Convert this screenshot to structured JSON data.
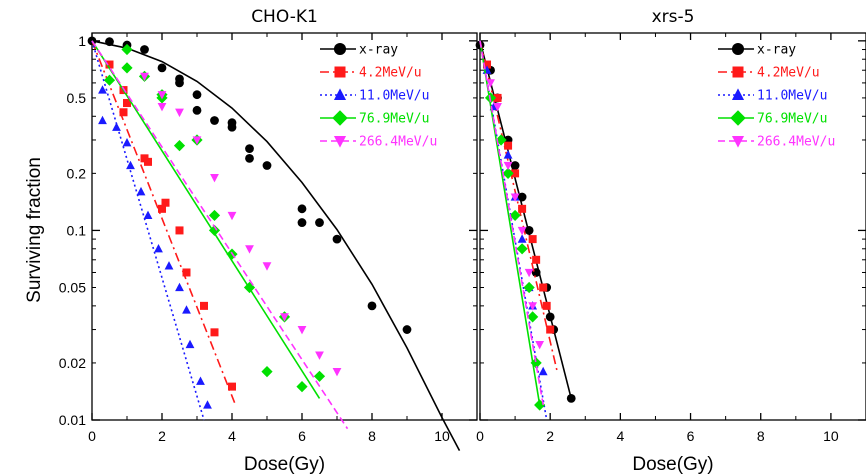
{
  "figure": {
    "ylabel": "Surviving  fraction"
  },
  "chart_data": [
    {
      "type": "scatter",
      "title": "CHO-K1",
      "xlabel": "Dose(Gy)",
      "ylabel": "Surviving  fraction",
      "xlim": [
        0,
        11
      ],
      "ylim": [
        0.01,
        1.1
      ],
      "yscale": "log",
      "x_ticks": [
        "0",
        "2",
        "4",
        "6",
        "8",
        "10"
      ],
      "y_ticks": [
        "1",
        "0.5",
        "0.2",
        "0.1",
        "0.05",
        "0.02",
        "0.01"
      ],
      "legend_position": "top-right",
      "series": [
        {
          "name": "x-ray",
          "color": "#000000",
          "marker": "circle",
          "line": "solid",
          "points": [
            [
              0,
              1.0
            ],
            [
              0.5,
              0.99
            ],
            [
              1,
              0.95
            ],
            [
              1.5,
              0.9
            ],
            [
              2,
              0.72
            ],
            [
              2.5,
              0.63
            ],
            [
              2.5,
              0.6
            ],
            [
              3,
              0.52
            ],
            [
              3,
              0.43
            ],
            [
              3.5,
              0.38
            ],
            [
              4,
              0.35
            ],
            [
              4,
              0.37
            ],
            [
              4.5,
              0.24
            ],
            [
              4.5,
              0.27
            ],
            [
              5,
              0.22
            ],
            [
              6,
              0.13
            ],
            [
              6,
              0.11
            ],
            [
              6.5,
              0.11
            ],
            [
              7,
              0.09
            ],
            [
              8,
              0.04
            ],
            [
              9,
              0.03
            ]
          ],
          "fit": [
            [
              0,
              1.0
            ],
            [
              1,
              0.915
            ],
            [
              2,
              0.777
            ],
            [
              3,
              0.611
            ],
            [
              4,
              0.442
            ],
            [
              5,
              0.294
            ],
            [
              6,
              0.179
            ],
            [
              7,
              0.101
            ],
            [
              8,
              0.052
            ],
            [
              9,
              0.024
            ],
            [
              10,
              0.0103
            ],
            [
              10.5,
              0.0069
            ]
          ]
        },
        {
          "name": "4.2MeV/u",
          "color": "#ff1a1a",
          "marker": "square",
          "line": "dashdot",
          "points": [
            [
              0.5,
              0.75
            ],
            [
              0.9,
              0.55
            ],
            [
              0.9,
              0.42
            ],
            [
              1,
              0.47
            ],
            [
              1.5,
              0.24
            ],
            [
              1.6,
              0.23
            ],
            [
              2,
              0.13
            ],
            [
              2.1,
              0.14
            ],
            [
              2.5,
              0.1
            ],
            [
              2.7,
              0.06
            ],
            [
              3.2,
              0.04
            ],
            [
              3.5,
              0.029
            ],
            [
              4,
              0.015
            ]
          ],
          "fit": [
            [
              0,
              1.0
            ],
            [
              4.1,
              0.012
            ]
          ]
        },
        {
          "name": "11.0MeV/u",
          "color": "#1a1aff",
          "marker": "triangle-up",
          "line": "dotted",
          "points": [
            [
              0.3,
              0.55
            ],
            [
              0.3,
              0.38
            ],
            [
              0.7,
              0.35
            ],
            [
              1,
              0.29
            ],
            [
              1.1,
              0.22
            ],
            [
              1.4,
              0.16
            ],
            [
              1.6,
              0.12
            ],
            [
              1.9,
              0.08
            ],
            [
              2.2,
              0.065
            ],
            [
              2.5,
              0.05
            ],
            [
              2.7,
              0.038
            ],
            [
              2.8,
              0.025
            ],
            [
              3.1,
              0.016
            ],
            [
              3.3,
              0.012
            ]
          ],
          "fit": [
            [
              0,
              1.0
            ],
            [
              3.2,
              0.01
            ]
          ]
        },
        {
          "name": "76.9MeV/u",
          "color": "#00e000",
          "marker": "diamond",
          "line": "solid",
          "points": [
            [
              0.5,
              0.62
            ],
            [
              1,
              0.9
            ],
            [
              1,
              0.72
            ],
            [
              1.5,
              0.65
            ],
            [
              2,
              0.52
            ],
            [
              2,
              0.5
            ],
            [
              2.5,
              0.28
            ],
            [
              3,
              0.3
            ],
            [
              3.5,
              0.12
            ],
            [
              3.5,
              0.1
            ],
            [
              4,
              0.075
            ],
            [
              4.5,
              0.05
            ],
            [
              5,
              0.018
            ],
            [
              5.5,
              0.035
            ],
            [
              6,
              0.015
            ],
            [
              6.5,
              0.017
            ]
          ],
          "fit": [
            [
              0,
              1.0
            ],
            [
              6.5,
              0.013
            ]
          ]
        },
        {
          "name": "266.4MeV/u",
          "color": "#ff33ff",
          "marker": "triangle-down",
          "line": "dashed",
          "points": [
            [
              1.5,
              0.65
            ],
            [
              2,
              0.52
            ],
            [
              2,
              0.45
            ],
            [
              2.5,
              0.42
            ],
            [
              3,
              0.3
            ],
            [
              3.5,
              0.19
            ],
            [
              4,
              0.12
            ],
            [
              4.5,
              0.08
            ],
            [
              5,
              0.065
            ],
            [
              5.5,
              0.035
            ],
            [
              6,
              0.03
            ],
            [
              6.5,
              0.022
            ],
            [
              7,
              0.018
            ]
          ],
          "fit": [
            [
              0,
              1.0
            ],
            [
              7.3,
              0.009
            ]
          ]
        }
      ]
    },
    {
      "type": "scatter",
      "title": "xrs-5",
      "xlabel": "Dose(Gy)",
      "xlim": [
        0,
        11
      ],
      "ylim": [
        0.01,
        1.1
      ],
      "yscale": "log",
      "x_ticks": [
        "0",
        "2",
        "4",
        "6",
        "8",
        "10"
      ],
      "legend_position": "top-right",
      "series": [
        {
          "name": "x-ray",
          "color": "#000000",
          "marker": "circle",
          "line": "solid",
          "points": [
            [
              0,
              0.95
            ],
            [
              0.3,
              0.7
            ],
            [
              0.5,
              0.5
            ],
            [
              0.8,
              0.3
            ],
            [
              1,
              0.22
            ],
            [
              1.2,
              0.15
            ],
            [
              1.4,
              0.1
            ],
            [
              1.6,
              0.06
            ],
            [
              1.9,
              0.05
            ],
            [
              2,
              0.035
            ],
            [
              2.1,
              0.03
            ],
            [
              2.6,
              0.013
            ]
          ],
          "fit": [
            [
              0,
              1.0
            ],
            [
              2.6,
              0.013
            ]
          ]
        },
        {
          "name": "4.2MeV/u",
          "color": "#ff1a1a",
          "marker": "square",
          "line": "dashdot",
          "points": [
            [
              0.2,
              0.75
            ],
            [
              0.5,
              0.5
            ],
            [
              0.8,
              0.28
            ],
            [
              1,
              0.2
            ],
            [
              1.2,
              0.13
            ],
            [
              1.5,
              0.09
            ],
            [
              1.6,
              0.07
            ],
            [
              1.8,
              0.05
            ],
            [
              1.9,
              0.04
            ],
            [
              2,
              0.03
            ]
          ],
          "fit": [
            [
              0,
              1.0
            ],
            [
              2.2,
              0.018
            ]
          ]
        },
        {
          "name": "11.0MeV/u",
          "color": "#1a1aff",
          "marker": "triangle-up",
          "line": "dotted",
          "points": [
            [
              0.2,
              0.7
            ],
            [
              0.4,
              0.45
            ],
            [
              0.8,
              0.25
            ],
            [
              1,
              0.15
            ],
            [
              1.2,
              0.09
            ],
            [
              1.4,
              0.05
            ],
            [
              1.5,
              0.04
            ],
            [
              1.8,
              0.018
            ]
          ],
          "fit": [
            [
              0,
              1.0
            ],
            [
              1.9,
              0.01
            ]
          ]
        },
        {
          "name": "76.9MeV/u",
          "color": "#00e000",
          "marker": "diamond",
          "line": "solid",
          "points": [
            [
              0.3,
              0.5
            ],
            [
              0.6,
              0.3
            ],
            [
              0.8,
              0.2
            ],
            [
              1,
              0.12
            ],
            [
              1.2,
              0.08
            ],
            [
              1.4,
              0.05
            ],
            [
              1.5,
              0.035
            ],
            [
              1.6,
              0.02
            ],
            [
              1.7,
              0.012
            ]
          ],
          "fit": [
            [
              0,
              1.0
            ],
            [
              1.7,
              0.012
            ]
          ]
        },
        {
          "name": "266.4MeV/u",
          "color": "#ff33ff",
          "marker": "triangle-down",
          "line": "dashed",
          "points": [
            [
              0.3,
              0.6
            ],
            [
              0.5,
              0.45
            ],
            [
              0.8,
              0.22
            ],
            [
              1,
              0.15
            ],
            [
              1.2,
              0.1
            ],
            [
              1.4,
              0.06
            ],
            [
              1.5,
              0.04
            ],
            [
              1.7,
              0.025
            ]
          ],
          "fit": [
            [
              0,
              1.0
            ],
            [
              1.8,
              0.012
            ]
          ]
        }
      ]
    }
  ]
}
